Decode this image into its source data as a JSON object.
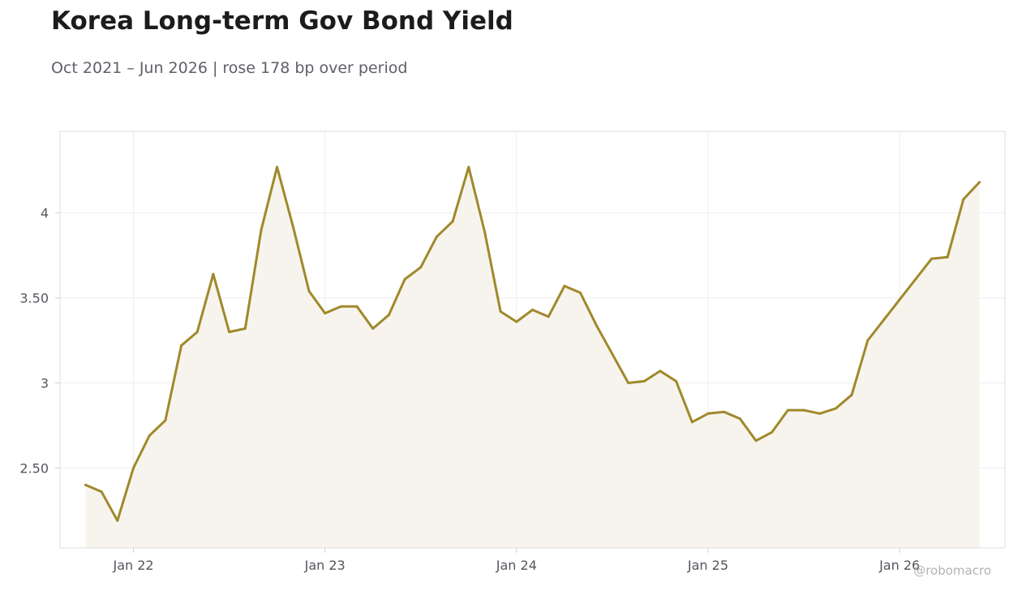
{
  "chart_data": {
    "type": "area",
    "title": "Korea Long-term Gov Bond Yield",
    "subtitle": "Oct 2021 – Jun 2026 | rose 178 bp over period",
    "watermark": "@robomacro",
    "xlabel": "",
    "ylabel": "",
    "x_ticks": [
      {
        "label": "Jan 22",
        "date": "2022-01"
      },
      {
        "label": "Jan 23",
        "date": "2023-01"
      },
      {
        "label": "Jan 24",
        "date": "2024-01"
      },
      {
        "label": "Jan 25",
        "date": "2025-01"
      },
      {
        "label": "Jan 26",
        "date": "2026-01"
      }
    ],
    "y_ticks": [
      {
        "label": "2.50",
        "value": 2.5
      },
      {
        "label": "3",
        "value": 3.0
      },
      {
        "label": "3.50",
        "value": 3.5
      },
      {
        "label": "4",
        "value": 4.0
      }
    ],
    "xlim": [
      "2021-08",
      "2026-08"
    ],
    "ylim": [
      2.03,
      4.48
    ],
    "grid": true,
    "line_color": "#a0892b",
    "fill_color": "#f7f4ee",
    "series": [
      {
        "x": [
          "2021-10",
          "2021-11",
          "2021-12",
          "2022-01",
          "2022-02",
          "2022-03",
          "2022-04",
          "2022-05",
          "2022-06",
          "2022-07",
          "2022-08",
          "2022-09",
          "2022-10",
          "2022-11",
          "2022-12",
          "2023-01",
          "2023-02",
          "2023-03",
          "2023-04",
          "2023-05",
          "2023-06",
          "2023-07",
          "2023-08",
          "2023-09",
          "2023-10",
          "2023-11",
          "2023-12",
          "2024-01",
          "2024-02",
          "2024-03",
          "2024-04",
          "2024-05",
          "2024-06",
          "2024-07",
          "2024-08",
          "2024-09",
          "2024-10",
          "2024-11",
          "2024-12",
          "2025-01",
          "2025-02",
          "2025-03",
          "2025-04",
          "2025-05",
          "2025-06",
          "2025-07",
          "2025-08",
          "2025-09",
          "2025-10",
          "2025-11",
          "2025-12",
          "2026-01",
          "2026-02",
          "2026-03",
          "2026-04",
          "2026-05",
          "2026-06"
        ],
        "values": [
          2.4,
          2.36,
          2.19,
          2.5,
          2.69,
          2.78,
          3.22,
          3.3,
          3.64,
          3.3,
          3.32,
          3.9,
          4.27,
          3.92,
          3.54,
          3.41,
          3.45,
          3.45,
          3.32,
          3.4,
          3.61,
          3.68,
          3.86,
          3.95,
          4.27,
          3.89,
          3.42,
          3.36,
          3.43,
          3.39,
          3.57,
          3.53,
          3.34,
          3.17,
          3.0,
          3.01,
          3.07,
          3.01,
          2.77,
          2.82,
          2.83,
          2.79,
          2.66,
          2.71,
          2.84,
          2.84,
          2.82,
          2.85,
          2.93,
          3.25,
          3.37,
          3.49,
          3.61,
          3.73,
          3.74,
          4.08,
          4.18
        ]
      }
    ]
  }
}
